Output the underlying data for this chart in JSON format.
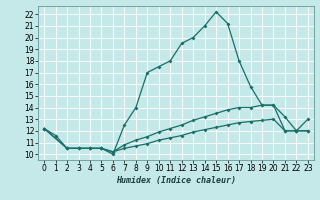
{
  "title": "",
  "xlabel": "Humidex (Indice chaleur)",
  "background_color": "#c5e8e8",
  "grid_color": "#ffffff",
  "line_color": "#1a6e6a",
  "xlim": [
    -0.5,
    23.5
  ],
  "ylim": [
    9.5,
    22.7
  ],
  "xticks": [
    0,
    1,
    2,
    3,
    4,
    5,
    6,
    7,
    8,
    9,
    10,
    11,
    12,
    13,
    14,
    15,
    16,
    17,
    18,
    19,
    20,
    21,
    22,
    23
  ],
  "yticks": [
    10,
    11,
    12,
    13,
    14,
    15,
    16,
    17,
    18,
    19,
    20,
    21,
    22
  ],
  "curve1_x": [
    0,
    1,
    2,
    3,
    4,
    5,
    6,
    7,
    8,
    9,
    10,
    11,
    12,
    13,
    14,
    15,
    16,
    17,
    18,
    19,
    20,
    21,
    22,
    23
  ],
  "curve1_y": [
    12.2,
    11.6,
    10.5,
    10.5,
    10.5,
    10.5,
    10.0,
    12.5,
    14.0,
    17.0,
    17.5,
    18.0,
    19.5,
    20.0,
    21.0,
    22.2,
    21.2,
    18.0,
    15.8,
    14.2,
    14.2,
    13.2,
    12.0,
    13.0
  ],
  "curve2_x": [
    0,
    2,
    3,
    4,
    5,
    6,
    7,
    8,
    9,
    10,
    11,
    12,
    13,
    14,
    15,
    16,
    17,
    18,
    19,
    20,
    21,
    22,
    23
  ],
  "curve2_y": [
    12.2,
    10.5,
    10.5,
    10.5,
    10.5,
    10.2,
    10.8,
    11.2,
    11.5,
    11.9,
    12.2,
    12.5,
    12.9,
    13.2,
    13.5,
    13.8,
    14.0,
    14.0,
    14.2,
    14.2,
    12.0,
    12.0,
    12.0
  ],
  "curve3_x": [
    0,
    2,
    3,
    4,
    5,
    6,
    7,
    8,
    9,
    10,
    11,
    12,
    13,
    14,
    15,
    16,
    17,
    18,
    19,
    20,
    21,
    22,
    23
  ],
  "curve3_y": [
    12.2,
    10.5,
    10.5,
    10.5,
    10.5,
    10.2,
    10.5,
    10.7,
    10.9,
    11.2,
    11.4,
    11.6,
    11.9,
    12.1,
    12.3,
    12.5,
    12.7,
    12.8,
    12.9,
    13.0,
    12.0,
    12.0,
    12.0
  ],
  "tick_fontsize": 5.5,
  "xlabel_fontsize": 6.0
}
